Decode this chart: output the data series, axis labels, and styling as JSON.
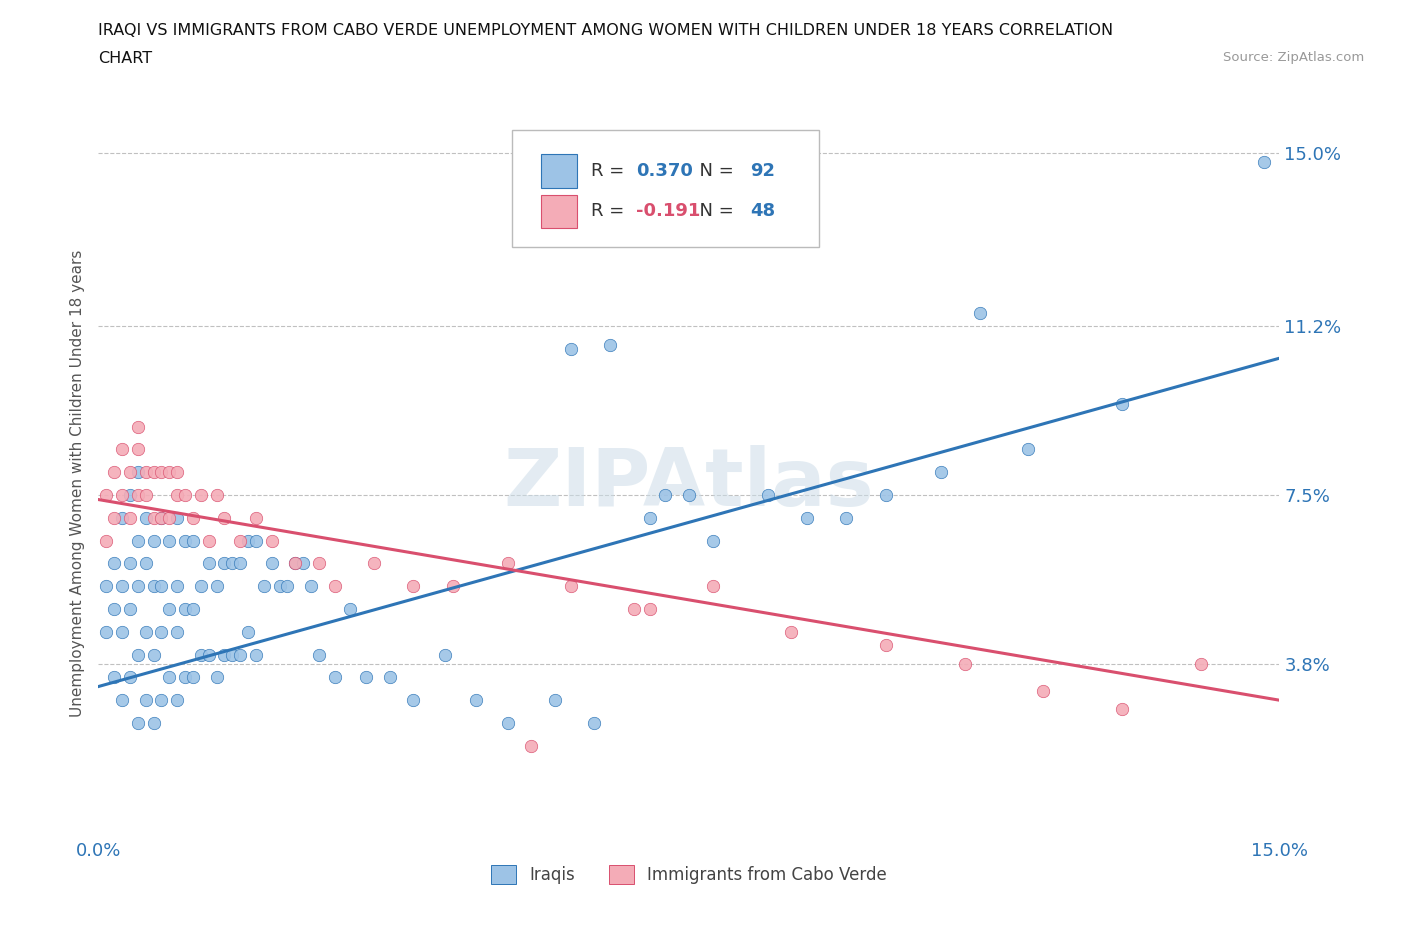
{
  "title_line1": "IRAQI VS IMMIGRANTS FROM CABO VERDE UNEMPLOYMENT AMONG WOMEN WITH CHILDREN UNDER 18 YEARS CORRELATION",
  "title_line2": "CHART",
  "source": "Source: ZipAtlas.com",
  "ylabel": "Unemployment Among Women with Children Under 18 years",
  "ytick_positions": [
    0.0,
    0.038,
    0.075,
    0.112,
    0.15
  ],
  "ytick_labels": [
    "",
    "3.8%",
    "7.5%",
    "11.2%",
    "15.0%"
  ],
  "xmin": 0.0,
  "xmax": 0.15,
  "ymin": 0.0,
  "ymax": 0.155,
  "iraqi_R": 0.37,
  "iraqi_N": 92,
  "cabo_R": -0.191,
  "cabo_N": 48,
  "iraqi_color": "#9dc3e6",
  "cabo_color": "#f4acb7",
  "iraqi_line_color": "#2e75b6",
  "cabo_line_color": "#d94f6e",
  "grid_color": "#c0c0c0",
  "watermark": "ZIPAtlas",
  "watermark_color": "#ccdce8",
  "background": "#ffffff",
  "iraqi_x": [
    0.001,
    0.001,
    0.002,
    0.002,
    0.002,
    0.003,
    0.003,
    0.003,
    0.003,
    0.004,
    0.004,
    0.004,
    0.004,
    0.005,
    0.005,
    0.005,
    0.005,
    0.005,
    0.006,
    0.006,
    0.006,
    0.006,
    0.007,
    0.007,
    0.007,
    0.007,
    0.008,
    0.008,
    0.008,
    0.008,
    0.009,
    0.009,
    0.009,
    0.01,
    0.01,
    0.01,
    0.01,
    0.011,
    0.011,
    0.011,
    0.012,
    0.012,
    0.012,
    0.013,
    0.013,
    0.014,
    0.014,
    0.015,
    0.015,
    0.016,
    0.016,
    0.017,
    0.017,
    0.018,
    0.018,
    0.019,
    0.019,
    0.02,
    0.02,
    0.021,
    0.022,
    0.023,
    0.024,
    0.025,
    0.026,
    0.027,
    0.028,
    0.03,
    0.032,
    0.034,
    0.037,
    0.04,
    0.044,
    0.048,
    0.052,
    0.058,
    0.063,
    0.07,
    0.072,
    0.075,
    0.078,
    0.085,
    0.09,
    0.095,
    0.1,
    0.107,
    0.112,
    0.118,
    0.13,
    0.148,
    0.06,
    0.065
  ],
  "iraqi_y": [
    0.045,
    0.055,
    0.035,
    0.05,
    0.06,
    0.03,
    0.045,
    0.055,
    0.07,
    0.035,
    0.05,
    0.06,
    0.075,
    0.025,
    0.04,
    0.055,
    0.065,
    0.08,
    0.03,
    0.045,
    0.06,
    0.07,
    0.025,
    0.04,
    0.055,
    0.065,
    0.03,
    0.045,
    0.055,
    0.07,
    0.035,
    0.05,
    0.065,
    0.03,
    0.045,
    0.055,
    0.07,
    0.035,
    0.05,
    0.065,
    0.035,
    0.05,
    0.065,
    0.04,
    0.055,
    0.04,
    0.06,
    0.035,
    0.055,
    0.04,
    0.06,
    0.04,
    0.06,
    0.04,
    0.06,
    0.045,
    0.065,
    0.04,
    0.065,
    0.055,
    0.06,
    0.055,
    0.055,
    0.06,
    0.06,
    0.055,
    0.04,
    0.035,
    0.05,
    0.035,
    0.035,
    0.03,
    0.04,
    0.03,
    0.025,
    0.03,
    0.025,
    0.07,
    0.075,
    0.075,
    0.065,
    0.075,
    0.07,
    0.07,
    0.075,
    0.08,
    0.115,
    0.085,
    0.095,
    0.148,
    0.107,
    0.108
  ],
  "cabo_x": [
    0.001,
    0.001,
    0.002,
    0.002,
    0.003,
    0.003,
    0.004,
    0.004,
    0.005,
    0.005,
    0.005,
    0.006,
    0.006,
    0.007,
    0.007,
    0.008,
    0.008,
    0.009,
    0.009,
    0.01,
    0.01,
    0.011,
    0.012,
    0.013,
    0.014,
    0.015,
    0.016,
    0.018,
    0.02,
    0.022,
    0.025,
    0.028,
    0.03,
    0.035,
    0.04,
    0.045,
    0.052,
    0.06,
    0.068,
    0.078,
    0.088,
    0.1,
    0.11,
    0.12,
    0.13,
    0.14,
    0.055,
    0.07
  ],
  "cabo_y": [
    0.065,
    0.075,
    0.07,
    0.08,
    0.075,
    0.085,
    0.07,
    0.08,
    0.075,
    0.085,
    0.09,
    0.075,
    0.08,
    0.07,
    0.08,
    0.07,
    0.08,
    0.07,
    0.08,
    0.075,
    0.08,
    0.075,
    0.07,
    0.075,
    0.065,
    0.075,
    0.07,
    0.065,
    0.07,
    0.065,
    0.06,
    0.06,
    0.055,
    0.06,
    0.055,
    0.055,
    0.06,
    0.055,
    0.05,
    0.055,
    0.045,
    0.042,
    0.038,
    0.032,
    0.028,
    0.038,
    0.02,
    0.05
  ],
  "iraqi_trend_x": [
    0.0,
    0.15
  ],
  "iraqi_trend_y": [
    0.033,
    0.105
  ],
  "cabo_trend_x": [
    0.0,
    0.15
  ],
  "cabo_trend_y": [
    0.074,
    0.03
  ]
}
